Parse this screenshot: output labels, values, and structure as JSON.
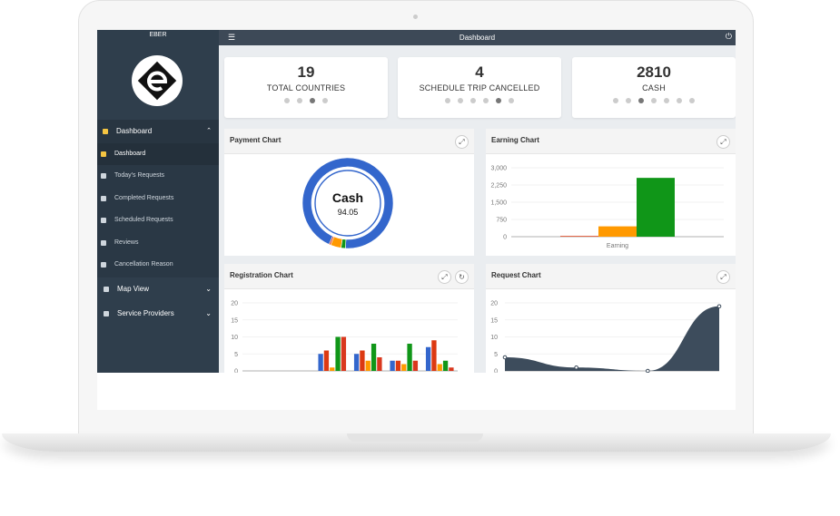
{
  "header": {
    "brand": "EBER",
    "page_title": "Dashboard"
  },
  "sidebar": {
    "sections": [
      {
        "label": "Dashboard",
        "items": [
          "Dashboard",
          "Today's Requests",
          "Completed Requests",
          "Scheduled Requests",
          "Reviews",
          "Cancellation Reason"
        ]
      },
      {
        "label": "Map View"
      },
      {
        "label": "Service Providers"
      }
    ]
  },
  "stats": [
    {
      "value": 19,
      "label": "TOTAL COUNTRIES"
    },
    {
      "value": 4,
      "label": "SCHEDULE TRIP CANCELLED"
    },
    {
      "value": 2810,
      "label": "CASH"
    }
  ],
  "charts": [
    {
      "title": "Payment Chart",
      "type": "pie",
      "labels": [
        "Cash",
        null,
        null,
        null
      ],
      "values": [
        94.05,
        0.6,
        3.8,
        1.55
      ],
      "colors": [
        "#3366cc",
        "#dc3912",
        "#ff9900",
        "#109618"
      ]
    },
    {
      "title": "Earning Chart",
      "type": "bar",
      "categories": [
        "Earning"
      ],
      "series": [
        {
          "color": "#dc3912",
          "values": [
            30
          ]
        },
        {
          "color": "#ff9900",
          "values": [
            450
          ]
        },
        {
          "color": "#109618",
          "values": [
            2560
          ]
        }
      ],
      "ylim": [
        0,
        3000
      ],
      "yticks": [
        0,
        750,
        {
          "value": 1500,
          "label": "1,500"
        },
        {
          "value": 2250,
          "label": "2,250"
        },
        {
          "value": 3000,
          "label": "3,000"
        }
      ],
      "grid": true
    },
    {
      "title": "Registration Chart",
      "type": "bar",
      "categories": [
        null,
        null,
        null,
        null,
        null,
        null
      ],
      "series": [
        {
          "color": "#3366cc",
          "values": [
            0,
            0,
            5,
            5,
            3,
            7
          ]
        },
        {
          "color": "#dc3912",
          "values": [
            0,
            0,
            6,
            6,
            3,
            9
          ]
        },
        {
          "color": "#ff9900",
          "values": [
            0,
            0,
            1,
            3,
            2,
            2
          ]
        },
        {
          "color": "#109618",
          "values": [
            0,
            0,
            10,
            8,
            8,
            3
          ]
        },
        {
          "color": "#d9381e",
          "values": [
            0,
            0,
            10,
            4,
            3,
            1
          ]
        }
      ],
      "ylim": [
        0,
        20
      ],
      "yticks": [
        0,
        5,
        10,
        15,
        20
      ],
      "grid": true
    },
    {
      "title": "Request Chart",
      "type": "area",
      "categories": [
        null,
        null,
        null,
        null
      ],
      "values": [
        4,
        1,
        0,
        19
      ],
      "color": "#3d4c5c",
      "ylim": [
        0,
        20
      ],
      "yticks": [
        0,
        5,
        10,
        15,
        20
      ],
      "grid": true
    }
  ]
}
